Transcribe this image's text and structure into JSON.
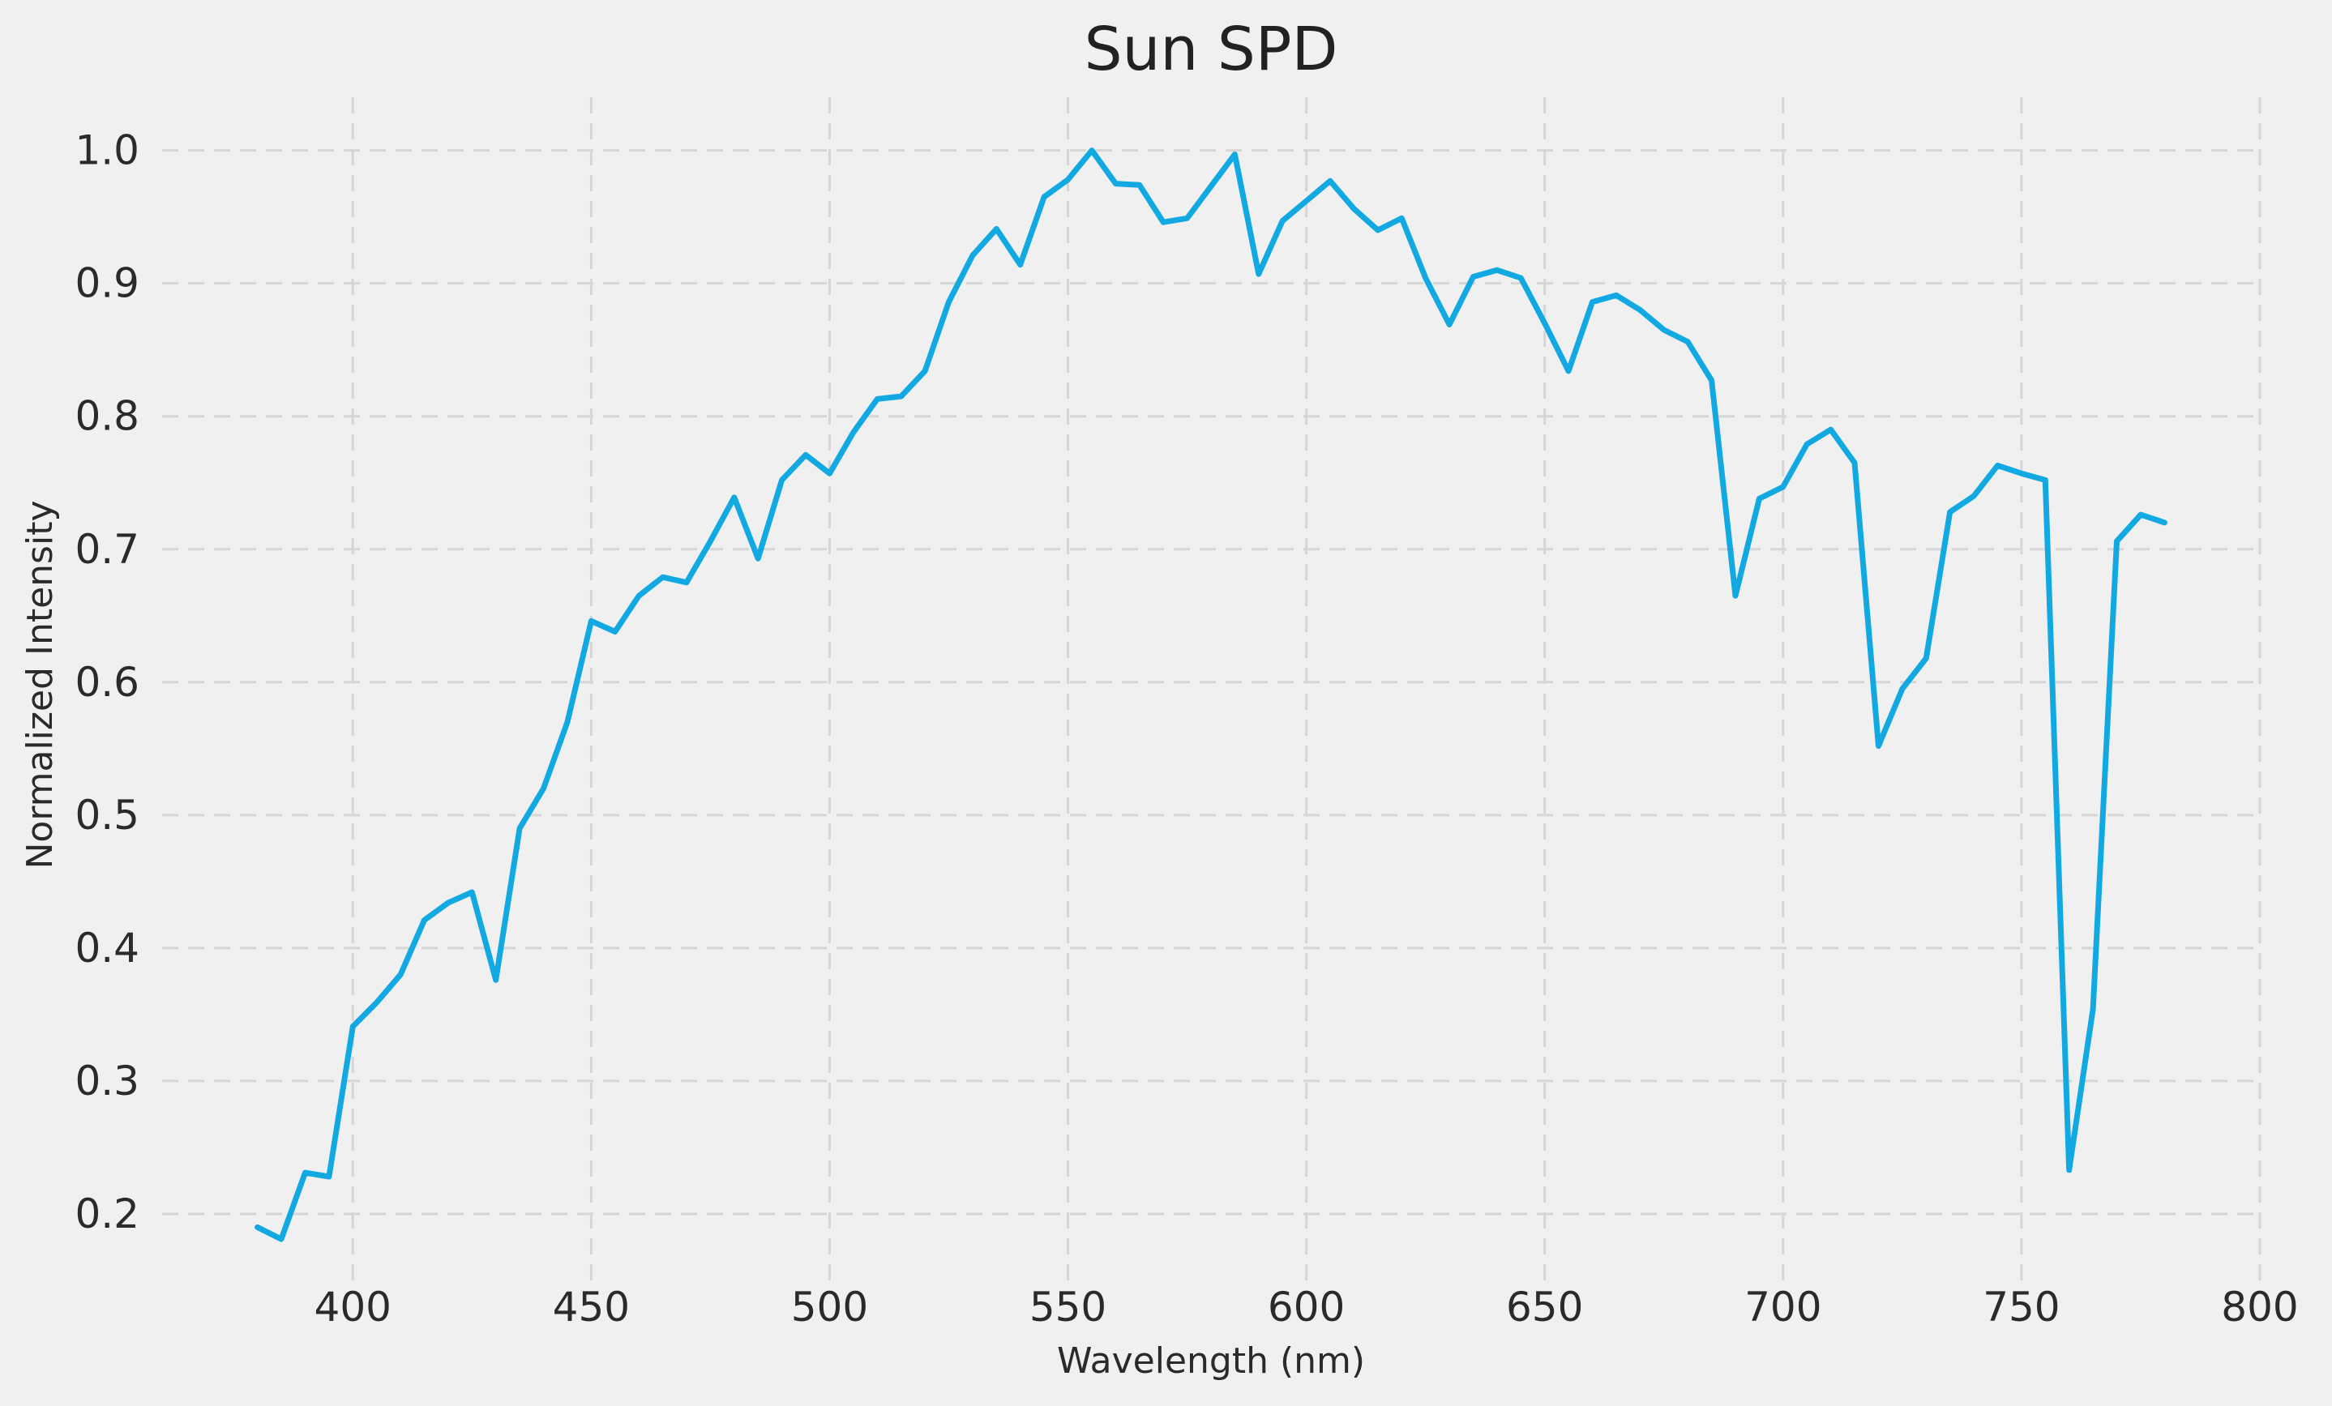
{
  "chart_data": {
    "type": "line",
    "title": "Sun SPD",
    "xlabel": "Wavelength (nm)",
    "ylabel": "Normalized Intensity",
    "xlim": [
      360,
      800
    ],
    "ylim": [
      0.15,
      1.04
    ],
    "xticks": [
      400,
      450,
      500,
      550,
      600,
      650,
      700,
      750,
      800
    ],
    "yticks": [
      0.2,
      0.3,
      0.4,
      0.5,
      0.6,
      0.7,
      0.8,
      0.9,
      1.0
    ],
    "xtick_labels": [
      "400",
      "450",
      "500",
      "550",
      "600",
      "650",
      "700",
      "750",
      "800"
    ],
    "ytick_labels": [
      "0.2",
      "0.3",
      "0.4",
      "0.5",
      "0.6",
      "0.7",
      "0.8",
      "0.9",
      "1.0"
    ],
    "grid": true,
    "background_color": "#f0f0f0",
    "series": [
      {
        "color": "#12a9e2",
        "x": [
          380,
          385,
          390,
          395,
          400,
          405,
          410,
          415,
          420,
          425,
          430,
          435,
          440,
          445,
          450,
          455,
          460,
          465,
          470,
          475,
          480,
          485,
          490,
          495,
          500,
          505,
          510,
          515,
          520,
          525,
          530,
          535,
          540,
          545,
          550,
          555,
          560,
          565,
          570,
          575,
          580,
          585,
          590,
          595,
          600,
          605,
          610,
          615,
          620,
          625,
          630,
          635,
          640,
          645,
          650,
          655,
          660,
          665,
          670,
          675,
          680,
          685,
          690,
          695,
          700,
          705,
          710,
          715,
          720,
          725,
          730,
          735,
          740,
          745,
          750,
          755,
          760,
          765,
          770,
          775,
          780
        ],
        "values": [
          0.19,
          0.181,
          0.231,
          0.228,
          0.341,
          0.359,
          0.38,
          0.421,
          0.434,
          0.442,
          0.376,
          0.49,
          0.52,
          0.57,
          0.646,
          0.638,
          0.665,
          0.679,
          0.675,
          0.706,
          0.739,
          0.693,
          0.752,
          0.771,
          0.757,
          0.788,
          0.813,
          0.815,
          0.834,
          0.886,
          0.921,
          0.941,
          0.914,
          0.965,
          0.978,
          1.0,
          0.975,
          0.974,
          0.946,
          0.949,
          0.973,
          0.997,
          0.907,
          0.947,
          0.962,
          0.977,
          0.956,
          0.94,
          0.949,
          0.904,
          0.869,
          0.905,
          0.91,
          0.904,
          0.87,
          0.834,
          0.886,
          0.891,
          0.88,
          0.865,
          0.856,
          0.827,
          0.665,
          0.738,
          0.747,
          0.779,
          0.79,
          0.765,
          0.552,
          0.595,
          0.618,
          0.728,
          0.74,
          0.763,
          0.757,
          0.752,
          0.233,
          0.354,
          0.706,
          0.726,
          0.72
        ]
      }
    ]
  }
}
